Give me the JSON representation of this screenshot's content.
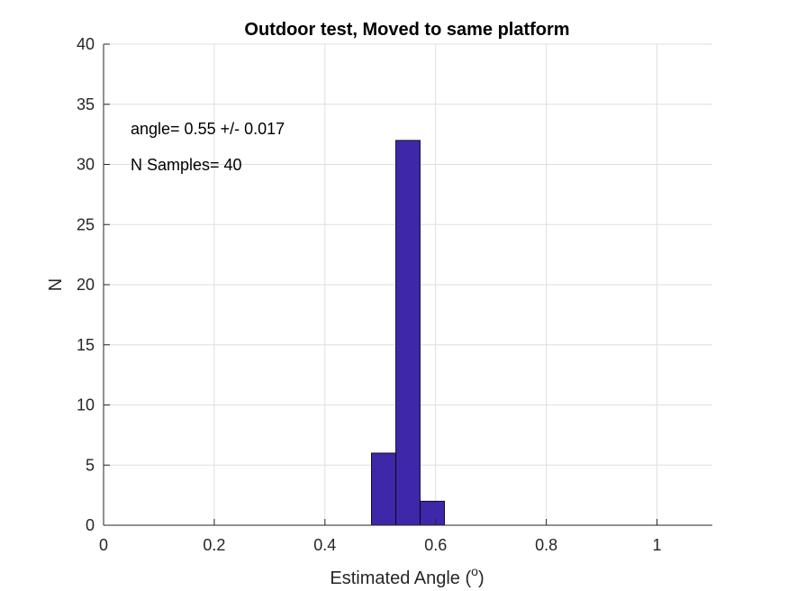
{
  "chart_data": {
    "type": "bar",
    "title": "Outdoor test, Moved to same platform",
    "xlabel": "Estimated Angle (",
    "xlabel_sup": "o",
    "xlabel_end": ")",
    "ylabel": "N",
    "xlim": [
      0,
      1.1
    ],
    "ylim": [
      0,
      40
    ],
    "xticks": [
      0,
      0.2,
      0.4,
      0.6,
      0.8,
      1
    ],
    "xtick_labels": [
      "0",
      "0.2",
      "0.4",
      "0.6",
      "0.8",
      "1"
    ],
    "yticks": [
      0,
      5,
      10,
      15,
      20,
      25,
      30,
      35,
      40
    ],
    "grid": true,
    "bar_color": "#3e27a8",
    "bins": [
      {
        "x0": 0.484,
        "x1": 0.528,
        "count": 6
      },
      {
        "x0": 0.528,
        "x1": 0.572,
        "count": 32
      },
      {
        "x0": 0.572,
        "x1": 0.616,
        "count": 2
      }
    ],
    "annotations": [
      "angle= 0.55 +/- 0.017",
      "N Samples= 40"
    ]
  }
}
